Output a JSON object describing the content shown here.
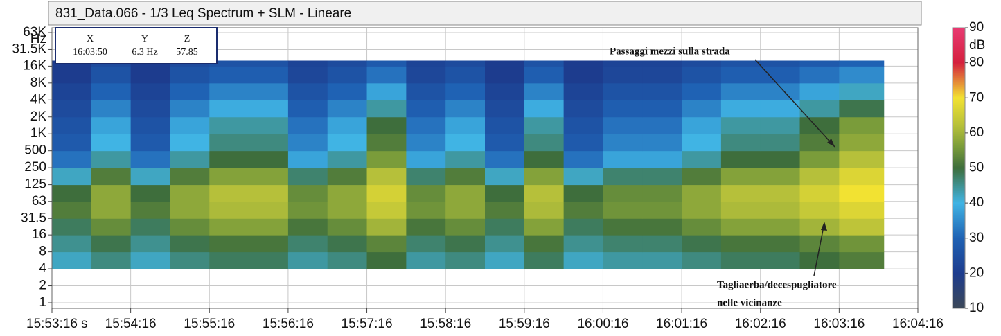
{
  "chart_data": {
    "type": "heatmap",
    "title": "831_Data.066 - 1/3 Leq Spectrum + SLM - Lineare",
    "xlabel": "s",
    "yunit": "Hz",
    "zlabel": "dB",
    "xlim": [
      "15:53:16",
      "16:04:16"
    ],
    "xticks": [
      "15:53:16",
      "15:54:16",
      "15:55:16",
      "15:56:16",
      "15:57:16",
      "15:58:16",
      "15:59:16",
      "16:00:16",
      "16:01:16",
      "16:02:16",
      "16:03:16",
      "16:04:16"
    ],
    "ylim": [
      1,
      63000
    ],
    "log_y": true,
    "grid": true,
    "yticks": [
      1,
      2,
      4,
      8,
      16,
      31.5,
      63,
      125,
      250,
      500,
      {
        "value": 1000,
        "label": "1K"
      },
      {
        "value": 2000,
        "label": "2K"
      },
      {
        "value": 4000,
        "label": "4K"
      },
      {
        "value": 8000,
        "label": "8K"
      },
      {
        "value": 16000,
        "label": "16K"
      },
      {
        "value": 31500,
        "label": "31.5K"
      },
      {
        "value": 63000,
        "label": "63K"
      }
    ],
    "xbins": [
      "15:53:16",
      "15:53:46",
      "15:54:16",
      "15:54:46",
      "15:55:16",
      "15:55:46",
      "15:56:16",
      "15:56:46",
      "15:57:16",
      "15:57:46",
      "15:58:16",
      "15:58:46",
      "15:59:16",
      "15:59:46",
      "16:00:16",
      "16:00:46",
      "16:01:16",
      "16:01:46",
      "16:02:16",
      "16:02:46",
      "16:03:16",
      "16:03:50"
    ],
    "ybins": [
      4,
      8,
      16,
      31.5,
      63,
      125,
      250,
      500,
      1000,
      2000,
      4000,
      8000,
      16000,
      20000
    ],
    "values": [
      [
        42,
        46,
        42,
        46,
        48,
        48,
        44,
        46,
        50,
        44,
        46,
        42,
        48,
        42,
        44,
        44,
        46,
        48,
        48,
        50,
        52
      ],
      [
        45,
        49,
        45,
        49,
        51,
        51,
        47,
        49,
        53,
        47,
        49,
        45,
        51,
        45,
        47,
        47,
        49,
        51,
        51,
        53,
        55
      ],
      [
        48,
        54,
        48,
        54,
        57,
        57,
        51,
        54,
        60,
        51,
        54,
        48,
        57,
        48,
        51,
        51,
        54,
        57,
        57,
        60,
        63
      ],
      [
        52,
        58,
        52,
        58,
        61,
        61,
        55,
        58,
        64,
        55,
        58,
        52,
        61,
        52,
        55,
        55,
        58,
        61,
        61,
        64,
        67
      ],
      [
        50,
        58,
        50,
        58,
        62,
        62,
        54,
        58,
        66,
        54,
        58,
        50,
        62,
        50,
        54,
        54,
        58,
        62,
        62,
        66,
        70
      ],
      [
        42,
        52,
        42,
        52,
        57,
        57,
        47,
        52,
        62,
        47,
        52,
        42,
        57,
        42,
        47,
        47,
        52,
        57,
        57,
        62,
        67
      ],
      [
        32,
        44,
        32,
        44,
        50,
        50,
        38,
        44,
        56,
        38,
        44,
        32,
        50,
        32,
        38,
        38,
        44,
        50,
        50,
        56,
        62
      ],
      [
        28,
        40,
        28,
        40,
        46,
        46,
        34,
        40,
        52,
        34,
        40,
        28,
        46,
        28,
        34,
        34,
        40,
        46,
        46,
        52,
        58
      ],
      [
        26,
        38,
        26,
        38,
        44,
        44,
        32,
        38,
        50,
        32,
        38,
        26,
        44,
        26,
        32,
        32,
        38,
        44,
        44,
        50,
        56
      ],
      [
        24,
        34,
        24,
        34,
        39,
        39,
        29,
        34,
        44,
        29,
        34,
        24,
        39,
        24,
        29,
        29,
        34,
        39,
        39,
        44,
        49
      ],
      [
        22,
        30,
        22,
        30,
        34,
        34,
        26,
        30,
        38,
        26,
        30,
        22,
        34,
        22,
        26,
        26,
        30,
        34,
        34,
        38,
        42
      ],
      [
        20,
        26,
        20,
        26,
        29,
        29,
        23,
        26,
        32,
        23,
        26,
        20,
        29,
        20,
        23,
        23,
        26,
        29,
        29,
        32,
        35
      ],
      [
        20,
        24,
        20,
        24,
        26,
        26,
        22,
        24,
        28,
        22,
        24,
        20,
        26,
        20,
        22,
        22,
        24,
        26,
        26,
        28,
        30
      ]
    ],
    "zlim": [
      10,
      90
    ],
    "zticks": [
      10,
      20,
      30,
      40,
      50,
      60,
      70,
      80,
      90
    ],
    "colorscale": [
      [
        10,
        "#3c4858"
      ],
      [
        20,
        "#1d3c8e"
      ],
      [
        30,
        "#1f62b4"
      ],
      [
        40,
        "#40b4e4"
      ],
      [
        50,
        "#3e6e3c"
      ],
      [
        56,
        "#7a9c3a"
      ],
      [
        62,
        "#b6c03a"
      ],
      [
        70,
        "#f2e232"
      ],
      [
        80,
        "#d4203e"
      ],
      [
        90,
        "#e83a72"
      ]
    ],
    "cursor": [
      {
        "label": "X",
        "value": "16:03:50"
      },
      {
        "label": "Y",
        "value": "6.3 Hz"
      },
      {
        "label": "Z",
        "value": "57.85"
      }
    ],
    "annotations": [
      "Passaggi mezzi sulla strada",
      "Tagliaerba/decespugliatore",
      "nelle vicinanze"
    ]
  }
}
